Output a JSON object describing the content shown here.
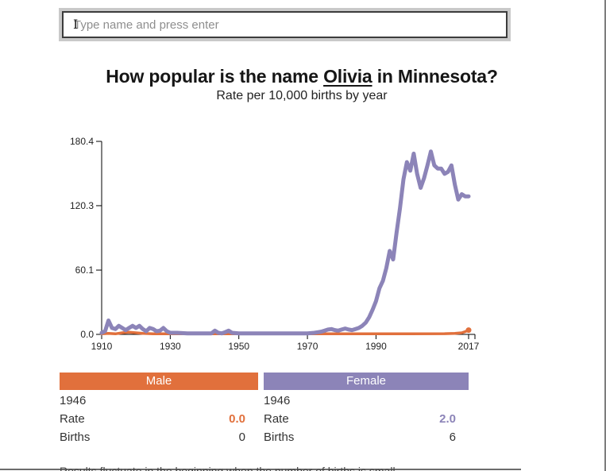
{
  "search": {
    "placeholder": "Type name and press enter"
  },
  "title": {
    "prefix": "How popular is the name ",
    "name": "Olivia",
    "suffix": " in Minnesota?",
    "subtitle": "Rate per 10,000 births by year"
  },
  "chart_data": {
    "type": "line",
    "title": "How popular is the name Olivia in Minnesota?",
    "subtitle": "Rate per 10,000 births by year",
    "xlabel": "",
    "ylabel": "Rate per 10,000 births",
    "x_domain": [
      1910,
      2017
    ],
    "ylim": [
      0,
      180.4
    ],
    "grid": false,
    "legend_position": "none",
    "y_ticks": [
      "0.0",
      "60.1",
      "120.3",
      "180.4"
    ],
    "y_tick_values": [
      0,
      60.1,
      120.3,
      180.4
    ],
    "x_ticks": [
      1910,
      1930,
      1950,
      1970,
      1990,
      2017
    ],
    "series": [
      {
        "name": "Male",
        "color": "#e1703c",
        "stroke_width": 3.5,
        "end_dot": true,
        "points": [
          [
            1910,
            0.5
          ],
          [
            1912,
            1
          ],
          [
            1914,
            0.5
          ],
          [
            1916,
            1.5
          ],
          [
            1918,
            2
          ],
          [
            1920,
            1.5
          ],
          [
            1922,
            1
          ],
          [
            1925,
            0.5
          ],
          [
            1930,
            0.5
          ],
          [
            1940,
            0.5
          ],
          [
            1950,
            0.5
          ],
          [
            1960,
            0.5
          ],
          [
            1970,
            0.5
          ],
          [
            1980,
            0.5
          ],
          [
            1990,
            0.5
          ],
          [
            2000,
            0.5
          ],
          [
            2010,
            0.7
          ],
          [
            2013,
            1
          ],
          [
            2015,
            1.5
          ],
          [
            2016,
            2.5
          ],
          [
            2017,
            4
          ]
        ]
      },
      {
        "name": "Female",
        "color": "#8c84b8",
        "stroke_width": 5,
        "end_dot": false,
        "points": [
          [
            1910,
            1.5
          ],
          [
            1911,
            3
          ],
          [
            1912,
            13
          ],
          [
            1913,
            6
          ],
          [
            1914,
            5
          ],
          [
            1915,
            8
          ],
          [
            1916,
            6
          ],
          [
            1917,
            4
          ],
          [
            1918,
            6
          ],
          [
            1919,
            8
          ],
          [
            1920,
            6
          ],
          [
            1921,
            8
          ],
          [
            1922,
            5
          ],
          [
            1923,
            3
          ],
          [
            1924,
            6
          ],
          [
            1925,
            5
          ],
          [
            1926,
            3
          ],
          [
            1927,
            3.5
          ],
          [
            1928,
            6
          ],
          [
            1929,
            3
          ],
          [
            1930,
            1.5
          ],
          [
            1932,
            1.5
          ],
          [
            1935,
            1
          ],
          [
            1940,
            1
          ],
          [
            1942,
            1
          ],
          [
            1943,
            3.5
          ],
          [
            1944,
            1.5
          ],
          [
            1945,
            1
          ],
          [
            1946,
            2
          ],
          [
            1947,
            3.5
          ],
          [
            1948,
            1.5
          ],
          [
            1950,
            1
          ],
          [
            1955,
            1
          ],
          [
            1960,
            1
          ],
          [
            1965,
            1
          ],
          [
            1970,
            1
          ],
          [
            1972,
            1.5
          ],
          [
            1973,
            2
          ],
          [
            1974,
            2.5
          ],
          [
            1975,
            3.5
          ],
          [
            1976,
            4.5
          ],
          [
            1977,
            5
          ],
          [
            1978,
            4
          ],
          [
            1979,
            3.5
          ],
          [
            1980,
            4.5
          ],
          [
            1981,
            5.5
          ],
          [
            1982,
            4.5
          ],
          [
            1983,
            4
          ],
          [
            1984,
            5
          ],
          [
            1985,
            6
          ],
          [
            1986,
            8
          ],
          [
            1987,
            11
          ],
          [
            1988,
            16
          ],
          [
            1989,
            23
          ],
          [
            1990,
            31
          ],
          [
            1991,
            43
          ],
          [
            1992,
            50
          ],
          [
            1993,
            62
          ],
          [
            1994,
            78
          ],
          [
            1995,
            70
          ],
          [
            1996,
            95
          ],
          [
            1997,
            118
          ],
          [
            1998,
            145
          ],
          [
            1999,
            161
          ],
          [
            2000,
            153
          ],
          [
            2001,
            169
          ],
          [
            2002,
            150
          ],
          [
            2003,
            137
          ],
          [
            2004,
            146
          ],
          [
            2005,
            158
          ],
          [
            2006,
            171
          ],
          [
            2007,
            158
          ],
          [
            2008,
            155
          ],
          [
            2009,
            155
          ],
          [
            2010,
            150
          ],
          [
            2011,
            152
          ],
          [
            2012,
            158
          ],
          [
            2013,
            140
          ],
          [
            2014,
            126
          ],
          [
            2015,
            131
          ],
          [
            2016,
            129
          ],
          [
            2017,
            129
          ]
        ]
      }
    ]
  },
  "cards": {
    "male": {
      "label": "Male",
      "year": "1946",
      "rate_label": "Rate",
      "rate": "0.0",
      "births_label": "Births",
      "births": "0",
      "color": "#e1703c"
    },
    "female": {
      "label": "Female",
      "year": "1946",
      "rate_label": "Rate",
      "rate": "2.0",
      "births_label": "Births",
      "births": "6",
      "color": "#8c84b8"
    }
  },
  "footer": {
    "note": "Results fluctuate in the beginning when the number of births is small."
  },
  "colors": {
    "male_accent": "#e1703c",
    "female_accent": "#8c84b8",
    "axis": "#000000",
    "axis_text": "#222222"
  }
}
